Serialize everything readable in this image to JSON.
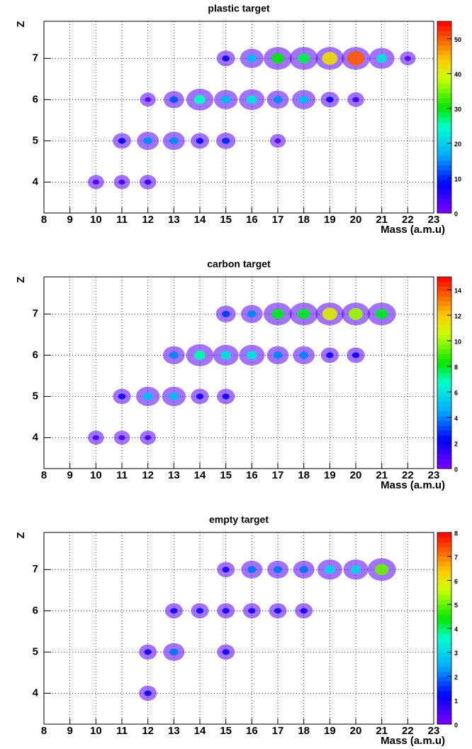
{
  "chart_data": [
    {
      "type": "heatmap",
      "title": "plastic target",
      "x_label": "Mass (a.m.u)",
      "y_label": "Z",
      "xlim": [
        8,
        23
      ],
      "xticks": [
        8,
        9,
        10,
        11,
        12,
        13,
        14,
        15,
        16,
        17,
        18,
        19,
        20,
        21,
        22,
        23
      ],
      "ylim": [
        3.25,
        7.9
      ],
      "yticks": [
        4,
        5,
        6,
        7
      ],
      "grid": true,
      "zlim": [
        0,
        55
      ],
      "zticks": [
        0,
        10,
        20,
        30,
        40,
        50
      ],
      "x": [
        15,
        16,
        17,
        18,
        19,
        20,
        21,
        22,
        12,
        13,
        14,
        15,
        16,
        17,
        18,
        19,
        20,
        11,
        12,
        13,
        14,
        15,
        17,
        10,
        11,
        12
      ],
      "y": [
        7,
        7,
        7,
        7,
        7,
        7,
        7,
        7,
        6,
        6,
        6,
        6,
        6,
        6,
        6,
        6,
        6,
        5,
        5,
        5,
        5,
        5,
        5,
        4,
        4,
        4
      ],
      "values": [
        8,
        18,
        30,
        28,
        42,
        50,
        22,
        3,
        3,
        12,
        25,
        18,
        22,
        15,
        18,
        8,
        5,
        8,
        15,
        15,
        8,
        10,
        3,
        4,
        4,
        5
      ]
    },
    {
      "type": "heatmap",
      "title": "carbon target",
      "x_label": "Mass (a.m.u)",
      "y_label": "Z",
      "xlim": [
        8,
        23
      ],
      "xticks": [
        8,
        9,
        10,
        11,
        12,
        13,
        14,
        15,
        16,
        17,
        18,
        19,
        20,
        21,
        22,
        23
      ],
      "ylim": [
        3.25,
        7.9
      ],
      "yticks": [
        4,
        5,
        6,
        7
      ],
      "grid": true,
      "zlim": [
        0,
        15
      ],
      "zticks": [
        0,
        2,
        4,
        6,
        8,
        10,
        12,
        14
      ],
      "x": [
        15,
        16,
        17,
        18,
        19,
        20,
        21,
        13,
        14,
        15,
        16,
        17,
        18,
        19,
        20,
        11,
        12,
        13,
        14,
        15,
        10,
        11,
        12
      ],
      "y": [
        7,
        7,
        7,
        7,
        7,
        7,
        7,
        6,
        6,
        6,
        6,
        6,
        6,
        6,
        6,
        5,
        5,
        5,
        5,
        5,
        4,
        4,
        4
      ],
      "values": [
        3,
        4,
        8,
        8,
        11,
        10,
        8,
        4,
        7,
        6,
        6,
        4,
        4,
        2,
        2,
        2,
        5,
        5,
        2,
        2,
        1,
        1,
        1
      ]
    },
    {
      "type": "heatmap",
      "title": "empty target",
      "x_label": "Mass (a.m.u)",
      "y_label": "Z",
      "xlim": [
        8,
        23
      ],
      "xticks": [
        8,
        9,
        10,
        11,
        12,
        13,
        14,
        15,
        16,
        17,
        18,
        19,
        20,
        21,
        22,
        23
      ],
      "ylim": [
        3.25,
        7.9
      ],
      "yticks": [
        4,
        5,
        6,
        7
      ],
      "grid": true,
      "zlim": [
        0,
        8
      ],
      "zticks": [
        0,
        1,
        2,
        3,
        4,
        5,
        6,
        7,
        8
      ],
      "x": [
        15,
        16,
        17,
        18,
        19,
        20,
        21,
        13,
        14,
        15,
        16,
        17,
        18,
        12,
        13,
        15,
        12
      ],
      "y": [
        7,
        7,
        7,
        7,
        7,
        7,
        7,
        6,
        6,
        6,
        6,
        6,
        6,
        5,
        5,
        5,
        4
      ],
      "values": [
        1,
        2,
        2,
        2,
        3,
        3,
        5,
        1,
        1,
        1,
        1,
        1,
        1,
        1,
        2,
        1,
        1
      ]
    }
  ]
}
